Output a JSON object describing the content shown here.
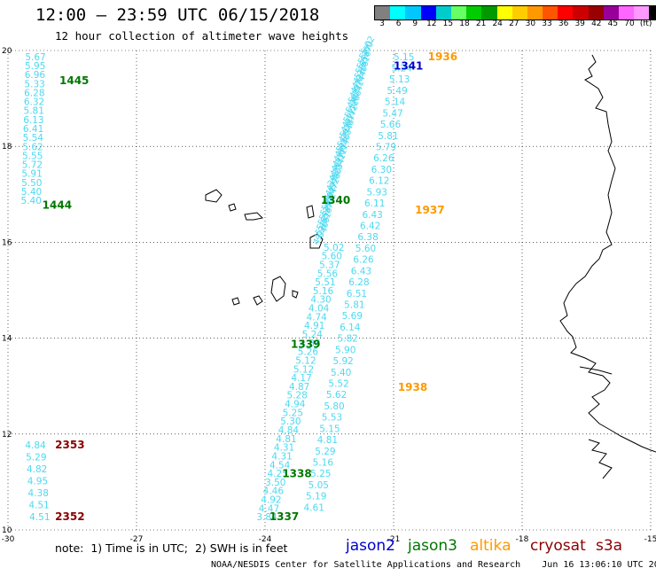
{
  "title": "12:00 – 23:59 UTC 06/15/2018",
  "subtitle": "12 hour collection of altimeter wave heights",
  "scale": {
    "unit": "(ft)",
    "colors": [
      "#808080",
      "#00ffff",
      "#00c8ff",
      "#0000ff",
      "#00cccc",
      "#66ff66",
      "#00cc00",
      "#009900",
      "#ffff00",
      "#ffcc00",
      "#ff9900",
      "#ff5500",
      "#ff0000",
      "#cc0000",
      "#990000",
      "#990099",
      "#ff66ff",
      "#ff99ff",
      "#000000"
    ],
    "labels": [
      "3",
      "6",
      "9",
      "12",
      "15",
      "18",
      "21",
      "24",
      "27",
      "30",
      "33",
      "36",
      "39",
      "42",
      "45",
      "70"
    ]
  },
  "axes": {
    "x_ticks": [
      -30,
      -27,
      -24,
      -21,
      -18,
      -15
    ],
    "y_ticks": [
      10,
      12,
      14,
      16,
      18,
      20
    ]
  },
  "satellite_colors": {
    "jason2": "#0000cc",
    "jason3": "#007700",
    "altika": "#ff9900",
    "cryosat": "#8b0000",
    "s3a": "#8b0000"
  },
  "tracks": [
    {
      "id": "track-1444-1445",
      "color": "#4dd9f0",
      "start": [
        -29.6,
        19.8
      ],
      "end": [
        -29.7,
        16.8
      ],
      "values": [
        "5.67",
        "5.95",
        "6.96",
        "5.33",
        "6.28",
        "6.32",
        "5.81",
        "6.13",
        "6.41",
        "5.54",
        "5.62",
        "5.55",
        "5.72",
        "5.91",
        "5.50",
        "5.40",
        "5.40"
      ],
      "times": [
        {
          "text": "1445",
          "sat": "jason3",
          "lon": -28.8,
          "lat": 19.3
        },
        {
          "text": "1444",
          "sat": "jason3",
          "lon": -29.2,
          "lat": 16.7
        }
      ]
    },
    {
      "id": "track-2352-2353",
      "color": "#4dd9f0",
      "start": [
        -29.6,
        11.7
      ],
      "end": [
        -29.5,
        10.2
      ],
      "values": [
        "4.84",
        "5.29",
        "4.82",
        "4.95",
        "4.38",
        "4.51",
        "4.51"
      ],
      "times": [
        {
          "text": "2353",
          "sat": "cryosat",
          "lon": -28.9,
          "lat": 11.7
        },
        {
          "text": "2352",
          "sat": "cryosat",
          "lon": -28.9,
          "lat": 10.2
        }
      ]
    },
    {
      "id": "track-1337-1341",
      "color": "#4dd9f0",
      "start": [
        -21.5,
        19.9
      ],
      "end": [
        -24.2,
        10.2
      ],
      "values": [
        "5.02",
        "5.60",
        "5.37",
        "5.56",
        "5.51",
        "5.16",
        "4.30",
        "4.04",
        "4.74",
        "4.91",
        "5.24",
        "4.88",
        "5.26",
        "5.12",
        "5.12",
        "4.17",
        "4.87",
        "5.28",
        "4.94",
        "5.25",
        "5.30",
        "4.84",
        "4.81",
        "4.31",
        "4.31",
        "4.54",
        "4.25",
        "3.50",
        "4.46",
        "4.92",
        "4.47",
        "3.84"
      ],
      "dense_values": 40,
      "times": [
        {
          "text": "1341",
          "sat": "jason2",
          "lon": -21.0,
          "lat": 19.6
        },
        {
          "text": "1340",
          "sat": "jason3",
          "lon": -22.7,
          "lat": 16.8
        },
        {
          "text": "1339",
          "sat": "jason3",
          "lon": -23.4,
          "lat": 13.8
        },
        {
          "text": "1338",
          "sat": "jason3",
          "lon": -23.6,
          "lat": 11.1
        },
        {
          "text": "1337",
          "sat": "jason3",
          "lon": -23.9,
          "lat": 10.2
        }
      ]
    },
    {
      "id": "track-1936-1938",
      "color": "#4dd9f0",
      "start": [
        -21.0,
        19.8
      ],
      "end": [
        -23.1,
        10.4
      ],
      "values": [
        "5.15",
        "5.24",
        "5.13",
        "5.49",
        "5.14",
        "5.47",
        "5.66",
        "5.81",
        "5.79",
        "6.26",
        "6.30",
        "6.12",
        "5.93",
        "6.11",
        "6.43",
        "6.42",
        "6.38",
        "5.60",
        "6.26",
        "6.43",
        "6.28",
        "6.51",
        "5.81",
        "5.69",
        "6.14",
        "5.82",
        "5.90",
        "5.92",
        "5.40",
        "5.52",
        "5.62",
        "5.80",
        "5.53",
        "5.15",
        "4.81",
        "5.29",
        "5.16",
        "5.25",
        "5.05",
        "5.19",
        "4.61"
      ],
      "times": [
        {
          "text": "1936",
          "sat": "altika",
          "lon": -20.2,
          "lat": 19.8
        },
        {
          "text": "1937",
          "sat": "altika",
          "lon": -20.5,
          "lat": 16.6
        },
        {
          "text": "1938",
          "sat": "altika",
          "lon": -20.9,
          "lat": 12.9
        }
      ]
    }
  ],
  "footer": {
    "note": "note:  1) Time is in UTC;  2) SWH is in feet",
    "legend": [
      {
        "label": "jason2",
        "sat": "jason2"
      },
      {
        "label": "jason3",
        "sat": "jason3"
      },
      {
        "label": "altika",
        "sat": "altika"
      },
      {
        "label": "cryosat",
        "sat": "cryosat"
      },
      {
        "label": "s3a",
        "sat": "s3a"
      }
    ],
    "credit": "NOAA/NESDIS Center for Satellite Applications and Research    Jun 16 13:06:10 UTC 2018"
  }
}
